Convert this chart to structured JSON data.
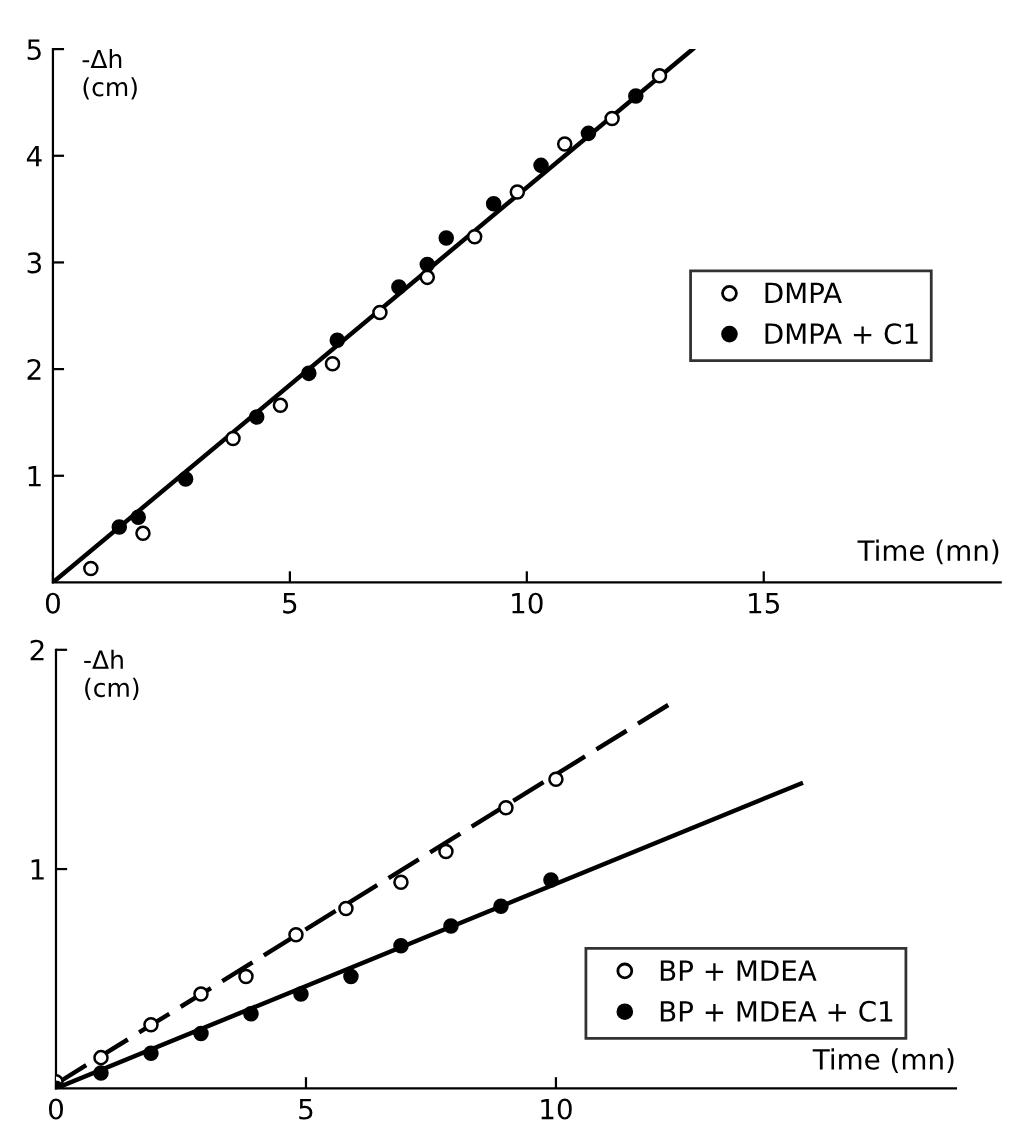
{
  "chart_data": [
    {
      "type": "scatter",
      "xlabel": "Time (mn)",
      "ylabel": "-Δh\n(cm)",
      "xlim": [
        0,
        20
      ],
      "ylim": [
        0,
        5
      ],
      "xticks": [
        0,
        5,
        10,
        15
      ],
      "yticks": [
        1,
        2,
        3,
        4,
        5
      ],
      "grid": false,
      "legend": "right",
      "series": [
        {
          "name": "DMPA",
          "color": "#ffffff",
          "marker": "circle",
          "x": [
            0.8,
            1.9,
            3.8,
            4.8,
            5.9,
            6.9,
            7.9,
            8.9,
            9.8,
            10.8,
            11.8,
            12.8
          ],
          "values": [
            0.13,
            0.46,
            1.35,
            1.66,
            2.05,
            2.53,
            2.86,
            3.24,
            3.66,
            4.11,
            4.35,
            4.75
          ]
        },
        {
          "name": "DMPA + C1",
          "color": "#000000",
          "marker": "circle",
          "x": [
            1.4,
            1.8,
            2.8,
            4.3,
            5.4,
            6.0,
            7.3,
            7.9,
            8.3,
            9.3,
            10.3,
            11.3,
            12.3
          ],
          "values": [
            0.52,
            0.61,
            0.97,
            1.55,
            1.96,
            2.27,
            2.77,
            2.98,
            3.23,
            3.55,
            3.91,
            4.21,
            4.56
          ]
        },
        {
          "type": "line",
          "color": "#000000",
          "marker": "none",
          "line_style": "solid",
          "x": [
            0,
            13.5
          ],
          "values": [
            0,
            5.0
          ]
        }
      ]
    },
    {
      "type": "scatter",
      "xlabel": "Time (mn)",
      "ylabel": "-Δh\n(cm)",
      "xlim": [
        0,
        18
      ],
      "ylim": [
        0,
        2
      ],
      "xticks": [
        0,
        5,
        10
      ],
      "yticks": [
        1,
        2
      ],
      "grid": false,
      "legend": "lower right",
      "series": [
        {
          "name": "BP + MDEA",
          "color": "#ffffff",
          "marker": "circle",
          "x": [
            0,
            0.9,
            1.9,
            2.9,
            3.8,
            4.8,
            5.8,
            6.9,
            7.8,
            9.0,
            10.0
          ],
          "values": [
            0.03,
            0.14,
            0.29,
            0.43,
            0.51,
            0.7,
            0.82,
            0.94,
            1.08,
            1.28,
            1.41
          ]
        },
        {
          "name": "BP + MDEA + C1",
          "color": "#000000",
          "marker": "circle",
          "x": [
            0,
            0.9,
            1.9,
            2.9,
            3.9,
            4.9,
            5.9,
            6.9,
            7.9,
            8.9,
            9.9
          ],
          "values": [
            0,
            0.07,
            0.16,
            0.25,
            0.34,
            0.43,
            0.51,
            0.65,
            0.74,
            0.83,
            0.95
          ]
        },
        {
          "type": "line",
          "color": "#000000",
          "marker": "none",
          "line_style": "dashed",
          "x": [
            0,
            12.4
          ],
          "values": [
            0.02,
            1.77
          ]
        },
        {
          "type": "line",
          "color": "#000000",
          "marker": "none",
          "line_style": "solid",
          "x": [
            0,
            14.9
          ],
          "values": [
            0,
            1.39
          ]
        }
      ]
    }
  ]
}
